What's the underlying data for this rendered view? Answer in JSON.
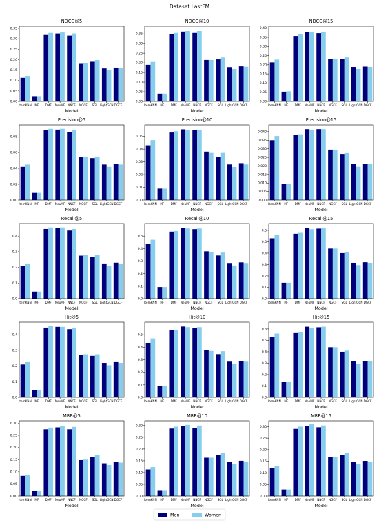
{
  "title": "Dataset LastFM",
  "legend": [
    {
      "name": "Men",
      "color": "#00007a"
    },
    {
      "name": "Women",
      "color": "#87cdee"
    }
  ],
  "chart_data": [
    {
      "type": "bar",
      "title": "NDCG@5",
      "xlabel": "Model",
      "categories": [
        "ItemKNN",
        "MF",
        "DMF",
        "NeuMF",
        "NNCF",
        "NGCF",
        "SGL",
        "LightGCN",
        "DGCF"
      ],
      "series": [
        {
          "values": [
            0.113,
            0.025,
            0.318,
            0.325,
            0.315,
            0.18,
            0.19,
            0.158,
            0.162
          ]
        },
        {
          "values": [
            0.122,
            0.025,
            0.328,
            0.33,
            0.325,
            0.182,
            0.198,
            0.15,
            0.16
          ]
        }
      ],
      "ylim": [
        0,
        0.36
      ],
      "yticks": [
        {
          "value": 0,
          "label": "0.00"
        },
        0.05,
        {
          "value": 0.1,
          "label": "0.10"
        },
        0.15,
        {
          "value": 0.2,
          "label": "0.20"
        },
        0.25,
        {
          "value": 0.3,
          "label": "0.30"
        },
        0.35
      ]
    },
    {
      "type": "bar",
      "title": "NDCG@10",
      "xlabel": "Model",
      "categories": [
        "ItemKNN",
        "MF",
        "DMF",
        "NeuMF",
        "NNCF",
        "NGCF",
        "SGL",
        "LightGCN",
        "DGCF"
      ],
      "series": [
        {
          "values": [
            0.19,
            0.04,
            0.348,
            0.362,
            0.355,
            0.215,
            0.218,
            0.178,
            0.182
          ]
        },
        {
          "values": [
            0.205,
            0.04,
            0.355,
            0.365,
            0.365,
            0.215,
            0.228,
            0.168,
            0.18
          ]
        }
      ],
      "ylim": [
        0,
        0.39
      ],
      "yticks": [
        {
          "value": 0,
          "label": "0.00"
        },
        0.05,
        {
          "value": 0.1,
          "label": "0.10"
        },
        0.15,
        {
          "value": 0.2,
          "label": "0.20"
        },
        0.25,
        {
          "value": 0.3,
          "label": "0.30"
        },
        0.35
      ]
    },
    {
      "type": "bar",
      "title": "NDCG@15",
      "xlabel": "Model",
      "categories": [
        "ItemKNN",
        "MF",
        "DMF",
        "NeuMF",
        "NNCF",
        "NGCF",
        "SGL",
        "LightGCN",
        "DGCF"
      ],
      "series": [
        {
          "values": [
            0.213,
            0.053,
            0.357,
            0.378,
            0.372,
            0.232,
            0.232,
            0.188,
            0.19
          ]
        },
        {
          "values": [
            0.228,
            0.055,
            0.367,
            0.38,
            0.38,
            0.233,
            0.24,
            0.177,
            0.188
          ]
        }
      ],
      "ylim": [
        0,
        0.41
      ],
      "yticks": [
        {
          "value": 0,
          "label": "0.00"
        },
        0.05,
        {
          "value": 0.1,
          "label": "0.10"
        },
        0.15,
        {
          "value": 0.2,
          "label": "0.20"
        },
        0.25,
        {
          "value": 0.3,
          "label": "0.30"
        },
        0.35,
        {
          "value": 0.4,
          "label": "0.40"
        }
      ]
    },
    {
      "type": "bar",
      "title": "Precision@5",
      "xlabel": "Model",
      "categories": [
        "ItemKNN",
        "MF",
        "DMF",
        "NeuMF",
        "NNCF",
        "NGCF",
        "SGL",
        "LightGCN",
        "DGCF"
      ],
      "series": [
        {
          "values": [
            0.042,
            0.009,
            0.088,
            0.089,
            0.086,
            0.054,
            0.053,
            0.045,
            0.046
          ]
        },
        {
          "values": [
            0.045,
            0.009,
            0.09,
            0.09,
            0.088,
            0.055,
            0.055,
            0.042,
            0.045
          ]
        }
      ],
      "ylim": [
        0,
        0.095
      ],
      "yticks": [
        {
          "value": 0,
          "label": "0.00"
        },
        0.02,
        0.04,
        0.06,
        0.08
      ]
    },
    {
      "type": "bar",
      "title": "Precision@10",
      "xlabel": "Model",
      "categories": [
        "ItemKNN",
        "MF",
        "DMF",
        "NeuMF",
        "NNCF",
        "NGCF",
        "SGL",
        "LightGCN",
        "DGCF"
      ],
      "series": [
        {
          "values": [
            0.043,
            0.009,
            0.053,
            0.0555,
            0.055,
            0.038,
            0.034,
            0.028,
            0.029
          ]
        },
        {
          "values": [
            0.047,
            0.009,
            0.054,
            0.055,
            0.055,
            0.037,
            0.037,
            0.026,
            0.028
          ]
        }
      ],
      "ylim": [
        0,
        0.059
      ],
      "yticks": [
        {
          "value": 0,
          "label": "0.00"
        },
        0.01,
        0.02,
        0.03,
        0.04,
        0.05
      ]
    },
    {
      "type": "bar",
      "title": "Precision@15",
      "xlabel": "Model",
      "categories": [
        "ItemKNN",
        "MF",
        "DMF",
        "NeuMF",
        "NNCF",
        "NGCF",
        "SGL",
        "LightGCN",
        "DGCF"
      ],
      "series": [
        {
          "values": [
            0.035,
            0.0095,
            0.038,
            0.0415,
            0.0415,
            0.0295,
            0.027,
            0.021,
            0.0213
          ]
        },
        {
          "values": [
            0.0375,
            0.0093,
            0.0385,
            0.041,
            0.0415,
            0.0295,
            0.0275,
            0.0195,
            0.021
          ]
        }
      ],
      "ylim": [
        0,
        0.044
      ],
      "yticks": [
        {
          "value": 0,
          "label": "0.000"
        },
        0.005,
        {
          "value": 0.01,
          "label": "0.010"
        },
        0.015,
        {
          "value": 0.02,
          "label": "0.020"
        },
        0.025,
        {
          "value": 0.03,
          "label": "0.030"
        },
        0.035,
        {
          "value": 0.04,
          "label": "0.040"
        }
      ]
    },
    {
      "type": "bar",
      "title": "Recall@5",
      "xlabel": "Model",
      "categories": [
        "ItemKNN",
        "MF",
        "DMF",
        "NeuMF",
        "NNCF",
        "NGCF",
        "SGL",
        "LightGCN",
        "DGCF"
      ],
      "series": [
        {
          "values": [
            0.21,
            0.045,
            0.445,
            0.45,
            0.435,
            0.275,
            0.265,
            0.225,
            0.23
          ]
        },
        {
          "values": [
            0.225,
            0.045,
            0.455,
            0.455,
            0.445,
            0.28,
            0.28,
            0.21,
            0.225
          ]
        }
      ],
      "ylim": [
        0,
        0.48
      ],
      "yticks": [
        {
          "value": 0,
          "label": "0.0"
        },
        0.1,
        0.2,
        0.3,
        0.4
      ]
    },
    {
      "type": "bar",
      "title": "Recall@10",
      "xlabel": "Model",
      "categories": [
        "ItemKNN",
        "MF",
        "DMF",
        "NeuMF",
        "NNCF",
        "NGCF",
        "SGL",
        "LightGCN",
        "DGCF"
      ],
      "series": [
        {
          "values": [
            0.435,
            0.093,
            0.535,
            0.565,
            0.555,
            0.378,
            0.345,
            0.285,
            0.29
          ]
        },
        {
          "values": [
            0.47,
            0.093,
            0.54,
            0.56,
            0.56,
            0.37,
            0.368,
            0.265,
            0.285
          ]
        }
      ],
      "ylim": [
        0,
        0.6
      ],
      "yticks": [
        {
          "value": 0,
          "label": "0.0"
        },
        0.1,
        0.2,
        0.3,
        0.4,
        0.5
      ]
    },
    {
      "type": "bar",
      "title": "Recall@15",
      "xlabel": "Model",
      "categories": [
        "ItemKNN",
        "MF",
        "DMF",
        "NeuMF",
        "NNCF",
        "NGCF",
        "SGL",
        "LightGCN",
        "DGCF"
      ],
      "series": [
        {
          "values": [
            0.53,
            0.14,
            0.57,
            0.62,
            0.615,
            0.44,
            0.4,
            0.315,
            0.32
          ]
        },
        {
          "values": [
            0.56,
            0.14,
            0.578,
            0.61,
            0.62,
            0.44,
            0.41,
            0.295,
            0.315
          ]
        }
      ],
      "ylim": [
        0,
        0.66
      ],
      "yticks": [
        {
          "value": 0,
          "label": "0.0"
        },
        0.1,
        0.2,
        0.3,
        0.4,
        0.5,
        0.6
      ]
    },
    {
      "type": "bar",
      "title": "Hit@5",
      "xlabel": "Model",
      "categories": [
        "ItemKNN",
        "MF",
        "DMF",
        "NeuMF",
        "NNCF",
        "NGCF",
        "SGL",
        "LightGCN",
        "DGCF"
      ],
      "series": [
        {
          "values": [
            0.21,
            0.045,
            0.445,
            0.45,
            0.435,
            0.27,
            0.265,
            0.22,
            0.225
          ]
        },
        {
          "values": [
            0.225,
            0.045,
            0.455,
            0.45,
            0.445,
            0.275,
            0.275,
            0.205,
            0.22
          ]
        }
      ],
      "ylim": [
        0,
        0.48
      ],
      "yticks": [
        {
          "value": 0,
          "label": "0.0"
        },
        0.1,
        0.2,
        0.3,
        0.4
      ]
    },
    {
      "type": "bar",
      "title": "Hit@10",
      "xlabel": "Model",
      "categories": [
        "ItemKNN",
        "MF",
        "DMF",
        "NeuMF",
        "NNCF",
        "NGCF",
        "SGL",
        "LightGCN",
        "DGCF"
      ],
      "series": [
        {
          "values": [
            0.435,
            0.093,
            0.535,
            0.565,
            0.555,
            0.378,
            0.345,
            0.285,
            0.29
          ]
        },
        {
          "values": [
            0.47,
            0.093,
            0.54,
            0.56,
            0.56,
            0.37,
            0.368,
            0.265,
            0.285
          ]
        }
      ],
      "ylim": [
        0,
        0.6
      ],
      "yticks": [
        {
          "value": 0,
          "label": "0.0"
        },
        0.1,
        0.2,
        0.3,
        0.4,
        0.5
      ]
    },
    {
      "type": "bar",
      "title": "Hit@15",
      "xlabel": "Model",
      "categories": [
        "ItemKNN",
        "MF",
        "DMF",
        "NeuMF",
        "NNCF",
        "NGCF",
        "SGL",
        "LightGCN",
        "DGCF"
      ],
      "series": [
        {
          "values": [
            0.53,
            0.135,
            0.57,
            0.62,
            0.615,
            0.44,
            0.4,
            0.315,
            0.32
          ]
        },
        {
          "values": [
            0.56,
            0.135,
            0.575,
            0.61,
            0.62,
            0.44,
            0.41,
            0.295,
            0.315
          ]
        }
      ],
      "ylim": [
        0,
        0.66
      ],
      "yticks": [
        {
          "value": 0,
          "label": "0.0"
        },
        0.1,
        0.2,
        0.3,
        0.4,
        0.5,
        0.6
      ]
    },
    {
      "type": "bar",
      "title": "MRR@5",
      "xlabel": "Model",
      "categories": [
        "ItemKNN",
        "MF",
        "DMF",
        "NeuMF",
        "NNCF",
        "NGCF",
        "SGL",
        "LightGCN",
        "DGCF"
      ],
      "series": [
        {
          "values": [
            0.083,
            0.02,
            0.275,
            0.283,
            0.275,
            0.148,
            0.162,
            0.135,
            0.14
          ]
        },
        {
          "values": [
            0.088,
            0.02,
            0.282,
            0.29,
            0.285,
            0.15,
            0.17,
            0.128,
            0.138
          ]
        }
      ],
      "ylim": [
        0,
        0.31
      ],
      "yticks": [
        {
          "value": 0,
          "label": "0.00"
        },
        0.05,
        {
          "value": 0.1,
          "label": "0.10"
        },
        0.15,
        {
          "value": 0.2,
          "label": "0.20"
        },
        0.25,
        {
          "value": 0.3,
          "label": "0.30"
        }
      ]
    },
    {
      "type": "bar",
      "title": "MRR@10",
      "xlabel": "Model",
      "categories": [
        "ItemKNN",
        "MF",
        "DMF",
        "NeuMF",
        "NNCF",
        "NGCF",
        "SGL",
        "LightGCN",
        "DGCF"
      ],
      "series": [
        {
          "values": [
            0.113,
            0.025,
            0.287,
            0.298,
            0.29,
            0.163,
            0.175,
            0.145,
            0.15
          ]
        },
        {
          "values": [
            0.123,
            0.025,
            0.295,
            0.303,
            0.3,
            0.163,
            0.183,
            0.137,
            0.147
          ]
        }
      ],
      "ylim": [
        0,
        0.32
      ],
      "yticks": [
        {
          "value": 0,
          "label": "0.00"
        },
        0.05,
        {
          "value": 0.1,
          "label": "0.10"
        },
        0.15,
        {
          "value": 0.2,
          "label": "0.20"
        },
        0.25,
        {
          "value": 0.3,
          "label": "0.30"
        }
      ]
    },
    {
      "type": "bar",
      "title": "MRR@15",
      "xlabel": "Model",
      "categories": [
        "ItemKNN",
        "MF",
        "DMF",
        "NeuMF",
        "NNCF",
        "NGCF",
        "SGL",
        "LightGCN",
        "DGCF"
      ],
      "series": [
        {
          "values": [
            0.122,
            0.028,
            0.29,
            0.303,
            0.297,
            0.168,
            0.178,
            0.147,
            0.152
          ]
        },
        {
          "values": [
            0.13,
            0.028,
            0.3,
            0.31,
            0.305,
            0.17,
            0.185,
            0.14,
            0.148
          ]
        }
      ],
      "ylim": [
        0,
        0.325
      ],
      "yticks": [
        {
          "value": 0,
          "label": "0.00"
        },
        0.05,
        {
          "value": 0.1,
          "label": "0.10"
        },
        0.15,
        {
          "value": 0.2,
          "label": "0.20"
        },
        0.25,
        {
          "value": 0.3,
          "label": "0.30"
        }
      ]
    }
  ]
}
